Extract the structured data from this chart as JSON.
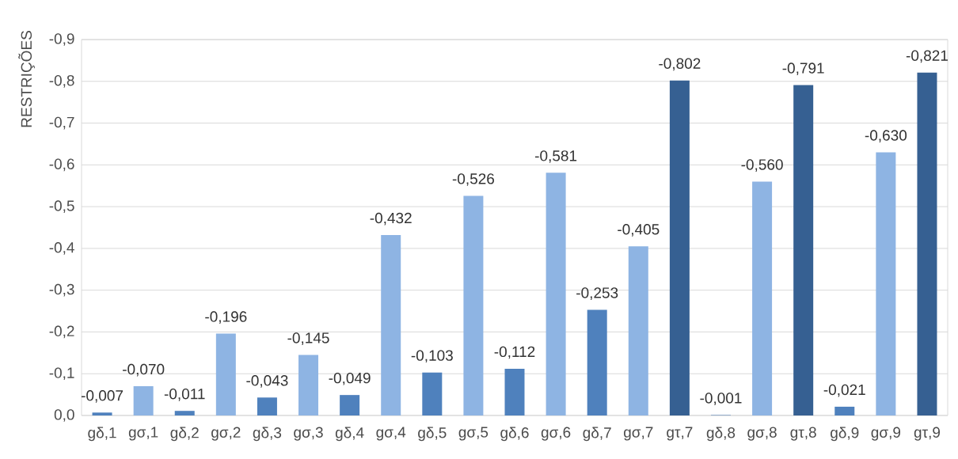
{
  "chart_data": {
    "type": "bar",
    "ylabel": "RESTRIÇÕES",
    "categories": [
      "gδ,1",
      "gσ,1",
      "gδ,2",
      "gσ,2",
      "gδ,3",
      "gσ,3",
      "gδ,4",
      "gσ,4",
      "gδ,5",
      "gσ,5",
      "gδ,6",
      "gσ,6",
      "gδ,7",
      "gσ,7",
      "gτ,7",
      "gδ,8",
      "gσ,8",
      "gτ,8",
      "gδ,9",
      "gσ,9",
      "gτ,9"
    ],
    "values": [
      -0.007,
      -0.07,
      -0.011,
      -0.196,
      -0.043,
      -0.145,
      -0.049,
      -0.432,
      -0.103,
      -0.526,
      -0.112,
      -0.581,
      -0.253,
      -0.405,
      -0.802,
      -0.001,
      -0.56,
      -0.791,
      -0.021,
      -0.63,
      -0.821
    ],
    "value_labels": [
      "-0,007",
      "-0,070",
      "-0,011",
      "-0,196",
      "-0,043",
      "-0,145",
      "-0,049",
      "-0,432",
      "-0,103",
      "-0,526",
      "-0,112",
      "-0,581",
      "-0,253",
      "-0,405",
      "-0,802",
      "-0,001",
      "-0,560",
      "-0,791",
      "-0,021",
      "-0,630",
      "-0,821"
    ],
    "colors": [
      "#4f81bd",
      "#8eb4e3",
      "#4f81bd",
      "#8eb4e3",
      "#4f81bd",
      "#8eb4e3",
      "#4f81bd",
      "#8eb4e3",
      "#4f81bd",
      "#8eb4e3",
      "#4f81bd",
      "#8eb4e3",
      "#4f81bd",
      "#8eb4e3",
      "#366092",
      "#4f81bd",
      "#8eb4e3",
      "#366092",
      "#4f81bd",
      "#8eb4e3",
      "#366092"
    ],
    "ylim": [
      0,
      -0.9
    ],
    "yticks": [
      {
        "value": 0,
        "label": "0,0"
      },
      {
        "value": -0.1,
        "label": "-0,1"
      },
      {
        "value": -0.2,
        "label": "-0,2"
      },
      {
        "value": -0.3,
        "label": "-0,3"
      },
      {
        "value": -0.4,
        "label": "-0,4"
      },
      {
        "value": -0.5,
        "label": "-0,5"
      },
      {
        "value": -0.6,
        "label": "-0,6"
      },
      {
        "value": -0.7,
        "label": "-0,7"
      },
      {
        "value": -0.8,
        "label": "-0,8"
      },
      {
        "value": -0.9,
        "label": "-0,9"
      }
    ],
    "grid": "y"
  }
}
